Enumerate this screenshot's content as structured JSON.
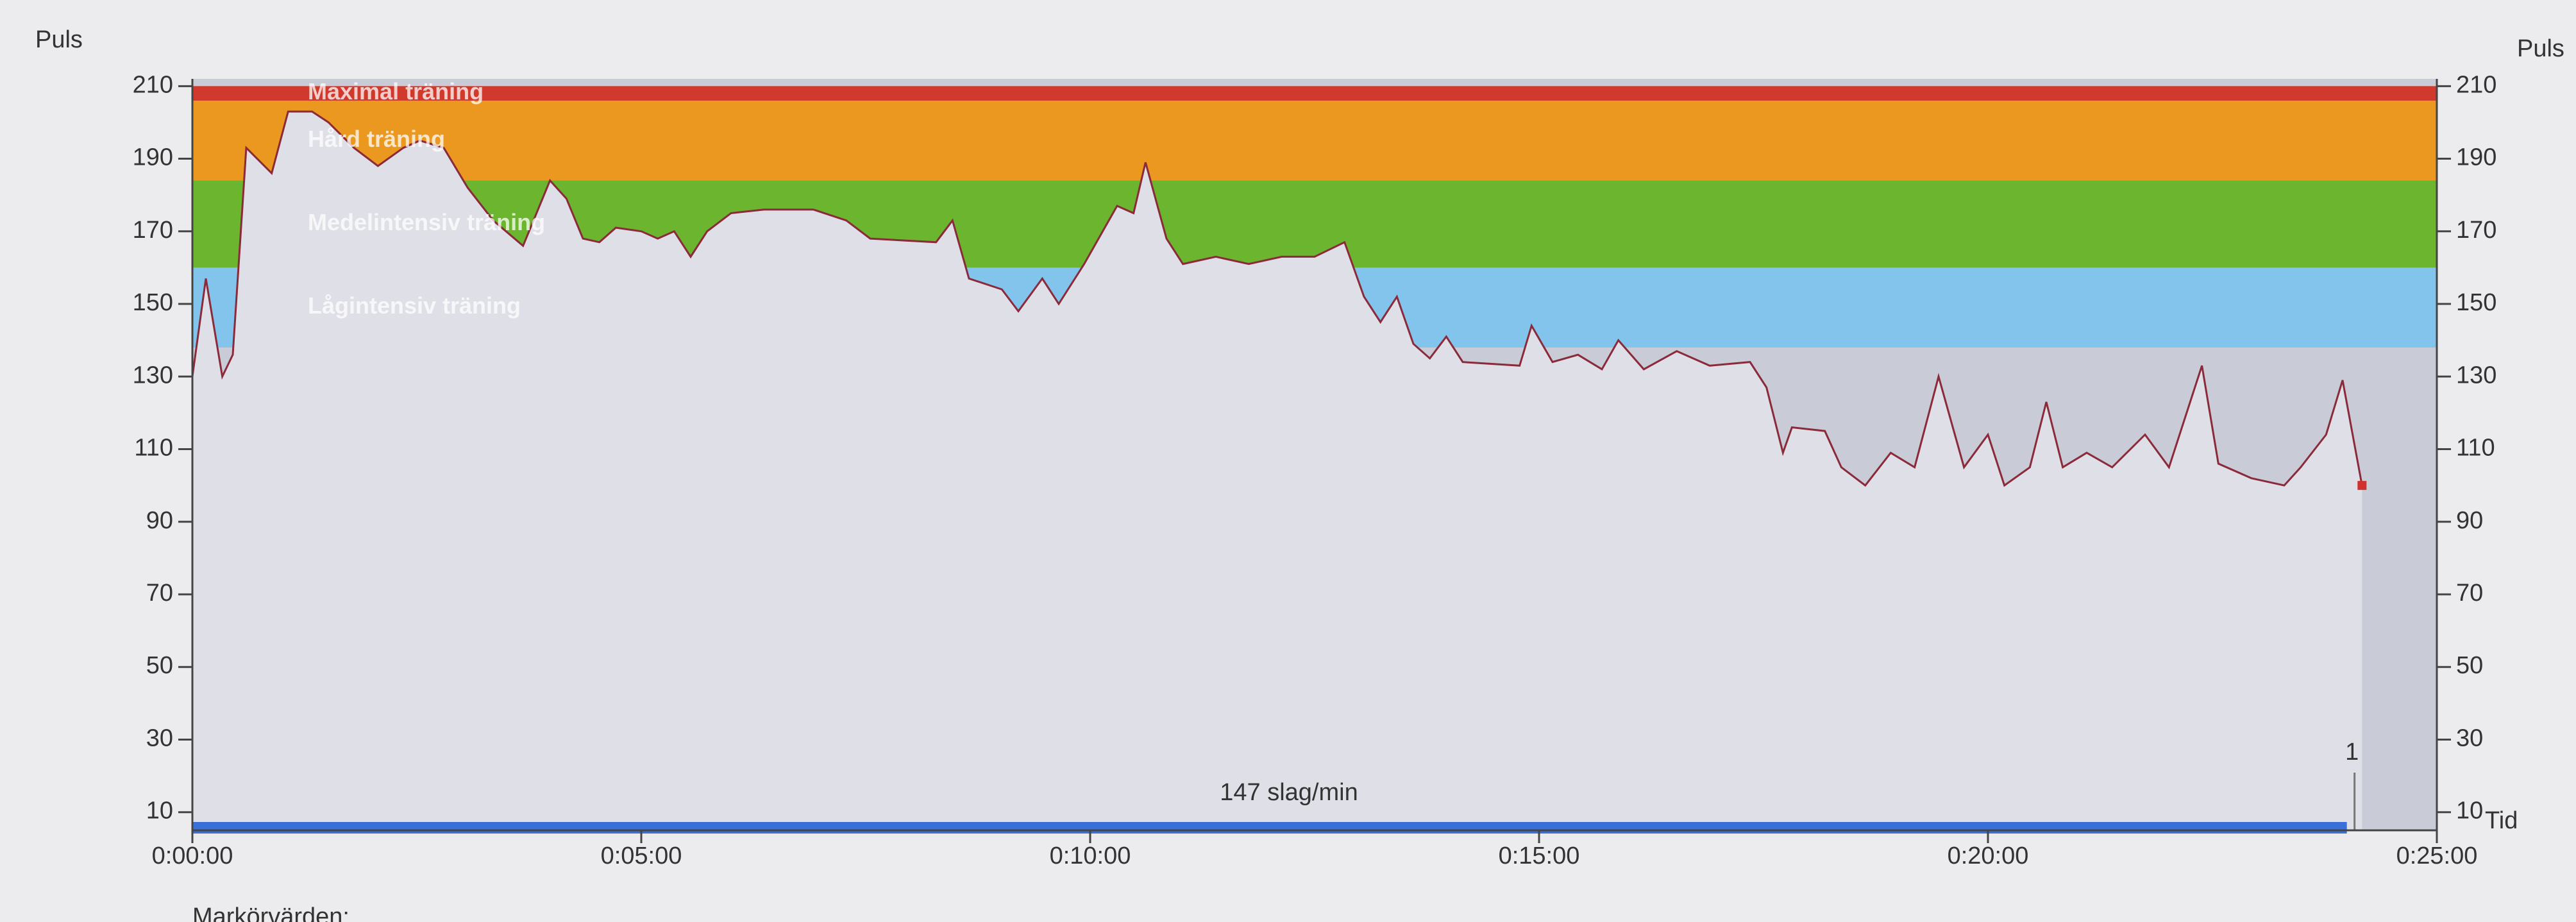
{
  "chart_data": {
    "type": "line",
    "y_label_left": "Puls",
    "y_label_right": "Puls",
    "x_label": "Tid",
    "footer_label": "Markörvärden:",
    "average_label": "147 slag/min",
    "marker": {
      "label": "1",
      "x": 1445
    },
    "zones": [
      {
        "name": "Maximal träning",
        "from": 206,
        "to": 210,
        "color": "#cf3a2c"
      },
      {
        "name": "Hård träning",
        "from": 184,
        "to": 206,
        "color": "#ea981f"
      },
      {
        "name": "Medelintensiv träning",
        "from": 160,
        "to": 184,
        "color": "#6cb52e"
      },
      {
        "name": "Lågintensiv träning",
        "from": 138,
        "to": 160,
        "color": "#82c4ec"
      }
    ],
    "x": [
      0,
      9,
      20,
      27,
      36,
      53,
      64,
      80,
      91,
      108,
      124,
      141,
      152,
      168,
      184,
      201,
      221,
      239,
      250,
      261,
      272,
      283,
      300,
      311,
      322,
      333,
      344,
      360,
      382,
      415,
      437,
      453,
      497,
      508,
      519,
      541,
      552,
      568,
      579,
      596,
      618,
      629,
      637,
      651,
      662,
      684,
      706,
      728,
      750,
      770,
      783,
      794,
      805,
      816,
      827,
      838,
      849,
      887,
      895,
      909,
      926,
      942,
      953,
      970,
      992,
      1014,
      1041,
      1052,
      1063,
      1069,
      1091,
      1102,
      1118,
      1135,
      1151,
      1167,
      1184,
      1200,
      1211,
      1228,
      1239,
      1250,
      1266,
      1283,
      1305,
      1321,
      1343,
      1354,
      1376,
      1398,
      1409,
      1426,
      1437,
      1450
    ],
    "series": [
      {
        "name": "Puls",
        "color": "#8a2a3a",
        "values": [
          130,
          157,
          130,
          136,
          193,
          186,
          203,
          203,
          200,
          193,
          188,
          193,
          195,
          193,
          182,
          173,
          166,
          184,
          179,
          168,
          167,
          171,
          170,
          168,
          170,
          163,
          170,
          175,
          176,
          176,
          173,
          168,
          167,
          173,
          157,
          154,
          148,
          157,
          150,
          161,
          177,
          175,
          189,
          168,
          161,
          163,
          161,
          163,
          163,
          167,
          152,
          145,
          152,
          139,
          135,
          141,
          134,
          133,
          144,
          134,
          136,
          132,
          140,
          132,
          137,
          133,
          134,
          127,
          109,
          116,
          115,
          105,
          100,
          109,
          105,
          130,
          105,
          114,
          100,
          105,
          123,
          105,
          109,
          105,
          114,
          105,
          133,
          106,
          102,
          100,
          105,
          114,
          129,
          100
        ]
      }
    ],
    "xlim": [
      0,
      1500
    ],
    "xticks": [
      {
        "value": 0,
        "label": "0:00:00"
      },
      {
        "value": 300,
        "label": "0:05:00"
      },
      {
        "value": 600,
        "label": "0:10:00"
      },
      {
        "value": 900,
        "label": "0:15:00"
      },
      {
        "value": 1200,
        "label": "0:20:00"
      },
      {
        "value": 1500,
        "label": "0:25:00"
      }
    ],
    "ylim": [
      5,
      212
    ],
    "yticks": [
      10,
      30,
      50,
      70,
      90,
      110,
      130,
      150,
      170,
      190,
      210
    ]
  }
}
